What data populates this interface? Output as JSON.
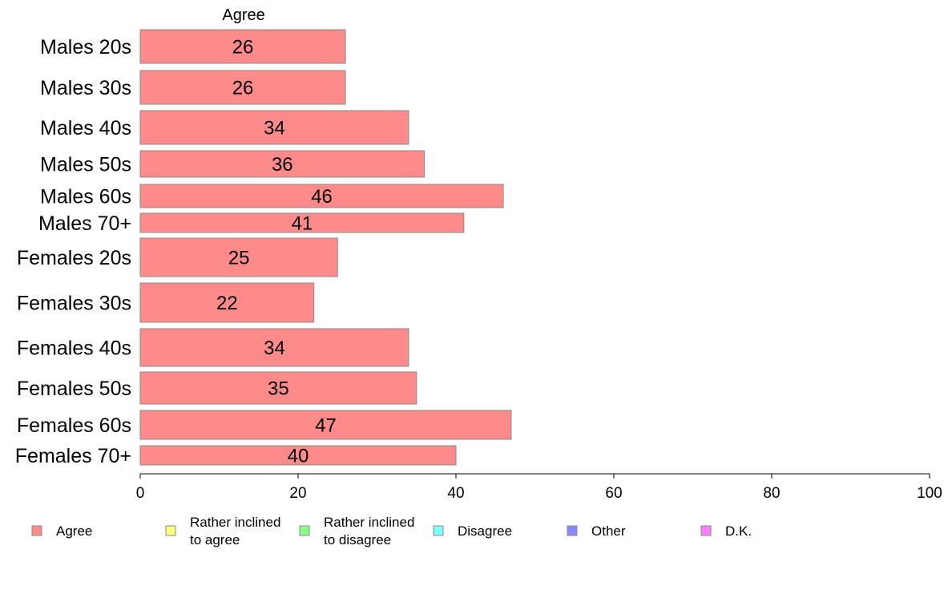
{
  "chart_data": {
    "type": "bar",
    "orientation": "horizontal",
    "stacked": true,
    "categories": [
      "Males 20s",
      "Males 30s",
      "Males 40s",
      "Males 50s",
      "Males 60s",
      "Males 70+",
      "Females 20s",
      "Females 30s",
      "Females 40s",
      "Females 50s",
      "Females 60s",
      "Females 70+"
    ],
    "series": [
      {
        "name": "Agree",
        "color": "#ff8a8a",
        "values": [
          26,
          26,
          34,
          36,
          46,
          41,
          25,
          22,
          34,
          35,
          47,
          40
        ]
      }
    ],
    "data_labels": [
      "26",
      "26",
      "34",
      "36",
      "46",
      "41",
      "25",
      "22",
      "34",
      "35",
      "47",
      "40"
    ],
    "series_header": "Agree",
    "xlim": [
      0,
      100
    ],
    "x_ticks": [
      0,
      20,
      40,
      60,
      80,
      100
    ],
    "x_tick_labels": [
      "0",
      "20",
      "40",
      "60",
      "80",
      "100"
    ],
    "grid": false,
    "legend": {
      "placement": "bottom",
      "items": [
        {
          "lines": [
            "Agree"
          ],
          "color": "#ff8a8a"
        },
        {
          "lines": [
            "Rather inclined",
            "to agree"
          ],
          "color": "#ffff80"
        },
        {
          "lines": [
            "Rather inclined",
            "to disagree"
          ],
          "color": "#88ff88"
        },
        {
          "lines": [
            "Disagree"
          ],
          "color": "#80ffff"
        },
        {
          "lines": [
            "Other"
          ],
          "color": "#8888ff"
        },
        {
          "lines": [
            "D.K."
          ],
          "color": "#ff80ff"
        }
      ]
    }
  }
}
